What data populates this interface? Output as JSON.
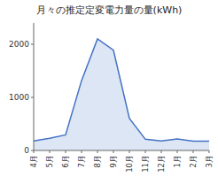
{
  "chart_data": {
    "type": "area",
    "title": "月々の推定定変電力量の量(kWh)",
    "categories": [
      "4月",
      "5月",
      "6月",
      "7月",
      "8月",
      "9月",
      "10月",
      "11月",
      "12月",
      "1月",
      "2月",
      "3月"
    ],
    "values": [
      180,
      230,
      292,
      1314,
      2100,
      1888,
      606,
      211,
      181,
      215,
      175,
      174
    ],
    "color": "#4472C4",
    "ylim": [
      0,
      2400
    ],
    "yticks": [
      0,
      1000,
      2000
    ],
    "grid": false
  }
}
